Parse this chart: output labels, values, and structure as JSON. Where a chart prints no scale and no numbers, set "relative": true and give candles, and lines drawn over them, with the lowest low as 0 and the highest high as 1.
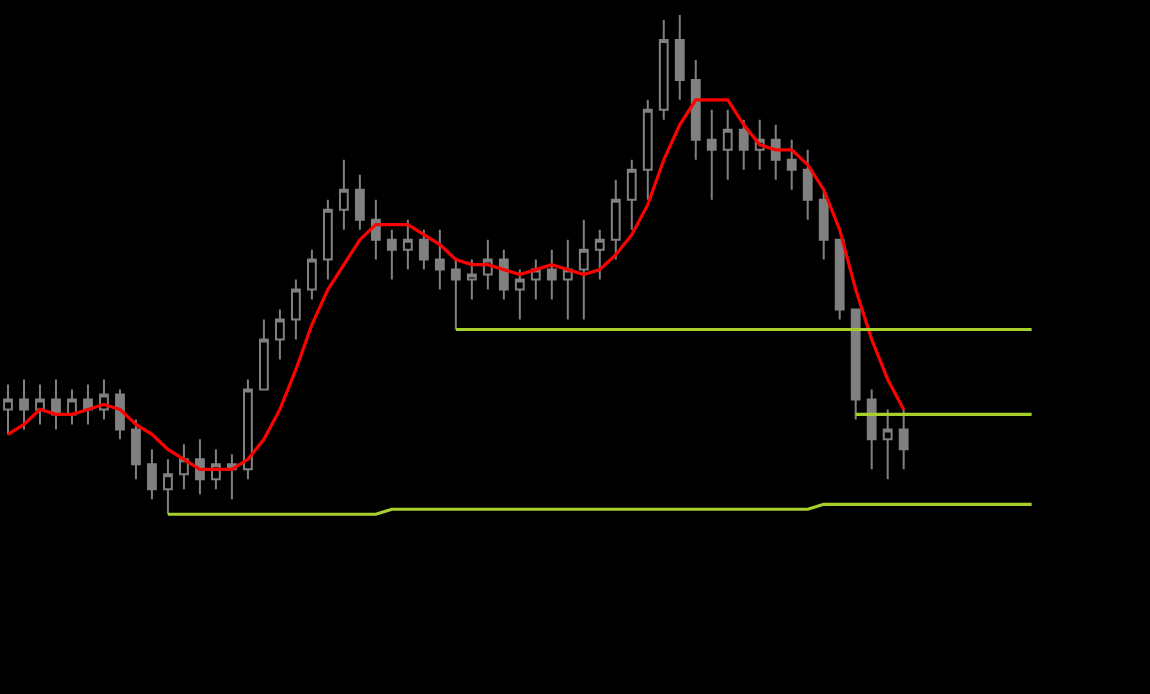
{
  "chart_data": {
    "type": "candlestick",
    "relative": true,
    "grid": false,
    "color": "#808080",
    "categories": [
      null,
      null,
      null,
      null,
      null,
      null,
      null,
      null,
      null,
      null,
      null,
      null,
      null,
      null,
      null,
      null,
      null,
      null,
      null,
      null,
      null,
      null,
      null,
      null,
      null,
      null,
      null,
      null,
      null,
      null,
      null,
      null,
      null,
      null,
      null,
      null,
      null,
      null,
      null,
      null,
      null,
      null,
      null,
      null,
      null,
      null,
      null,
      null,
      null,
      null,
      null,
      null,
      null,
      null,
      null,
      null,
      null,
      null,
      null,
      null,
      null,
      null,
      null,
      null,
      null
    ],
    "ohlc": [
      [
        0.21,
        0.26,
        0.16,
        0.23
      ],
      [
        0.23,
        0.27,
        0.17,
        0.21
      ],
      [
        0.21,
        0.26,
        0.18,
        0.23
      ],
      [
        0.23,
        0.27,
        0.17,
        0.2
      ],
      [
        0.2,
        0.25,
        0.18,
        0.23
      ],
      [
        0.23,
        0.26,
        0.18,
        0.21
      ],
      [
        0.21,
        0.27,
        0.19,
        0.24
      ],
      [
        0.24,
        0.25,
        0.15,
        0.17
      ],
      [
        0.17,
        0.19,
        0.07,
        0.1
      ],
      [
        0.1,
        0.13,
        0.03,
        0.05
      ],
      [
        0.05,
        0.11,
        0.0,
        0.08
      ],
      [
        0.08,
        0.14,
        0.05,
        0.11
      ],
      [
        0.11,
        0.15,
        0.04,
        0.07
      ],
      [
        0.07,
        0.13,
        0.05,
        0.1
      ],
      [
        0.1,
        0.12,
        0.03,
        0.09
      ],
      [
        0.09,
        0.27,
        0.07,
        0.25
      ],
      [
        0.25,
        0.39,
        0.25,
        0.35
      ],
      [
        0.35,
        0.41,
        0.31,
        0.39
      ],
      [
        0.39,
        0.47,
        0.35,
        0.45
      ],
      [
        0.45,
        0.53,
        0.43,
        0.51
      ],
      [
        0.51,
        0.63,
        0.47,
        0.61
      ],
      [
        0.61,
        0.71,
        0.57,
        0.65
      ],
      [
        0.65,
        0.68,
        0.57,
        0.59
      ],
      [
        0.59,
        0.63,
        0.51,
        0.55
      ],
      [
        0.55,
        0.57,
        0.47,
        0.53
      ],
      [
        0.53,
        0.59,
        0.49,
        0.55
      ],
      [
        0.55,
        0.57,
        0.49,
        0.51
      ],
      [
        0.51,
        0.57,
        0.45,
        0.49
      ],
      [
        0.49,
        0.51,
        0.37,
        0.47
      ],
      [
        0.47,
        0.51,
        0.43,
        0.48
      ],
      [
        0.48,
        0.55,
        0.45,
        0.51
      ],
      [
        0.51,
        0.53,
        0.43,
        0.45
      ],
      [
        0.45,
        0.49,
        0.39,
        0.47
      ],
      [
        0.47,
        0.51,
        0.43,
        0.49
      ],
      [
        0.49,
        0.53,
        0.43,
        0.47
      ],
      [
        0.47,
        0.55,
        0.39,
        0.49
      ],
      [
        0.49,
        0.59,
        0.39,
        0.53
      ],
      [
        0.53,
        0.57,
        0.47,
        0.55
      ],
      [
        0.55,
        0.67,
        0.51,
        0.63
      ],
      [
        0.63,
        0.71,
        0.57,
        0.69
      ],
      [
        0.69,
        0.83,
        0.63,
        0.81
      ],
      [
        0.81,
        0.99,
        0.79,
        0.95
      ],
      [
        0.95,
        1.0,
        0.83,
        0.87
      ],
      [
        0.87,
        0.91,
        0.71,
        0.75
      ],
      [
        0.75,
        0.81,
        0.63,
        0.73
      ],
      [
        0.73,
        0.81,
        0.67,
        0.77
      ],
      [
        0.77,
        0.79,
        0.69,
        0.73
      ],
      [
        0.73,
        0.79,
        0.69,
        0.75
      ],
      [
        0.75,
        0.78,
        0.67,
        0.71
      ],
      [
        0.71,
        0.75,
        0.65,
        0.69
      ],
      [
        0.69,
        0.73,
        0.59,
        0.63
      ],
      [
        0.63,
        0.65,
        0.51,
        0.55
      ],
      [
        0.55,
        0.55,
        0.39,
        0.41
      ],
      [
        0.41,
        0.41,
        0.19,
        0.23
      ],
      [
        0.23,
        0.25,
        0.09,
        0.15
      ],
      [
        0.15,
        0.21,
        0.07,
        0.17
      ],
      [
        0.17,
        0.21,
        0.09,
        0.13
      ],
      null,
      null,
      null,
      null,
      null,
      null,
      null,
      null
    ],
    "series": [
      {
        "type": "line",
        "color": "#ff0000",
        "values": [
          0.16,
          0.18,
          0.21,
          0.2,
          0.2,
          0.21,
          0.22,
          0.21,
          0.18,
          0.16,
          0.13,
          0.11,
          0.09,
          0.09,
          0.09,
          0.11,
          0.15,
          0.21,
          0.29,
          0.38,
          0.45,
          0.5,
          0.55,
          0.58,
          0.58,
          0.58,
          0.56,
          0.54,
          0.51,
          0.5,
          0.5,
          0.49,
          0.48,
          0.49,
          0.5,
          0.49,
          0.48,
          0.49,
          0.52,
          0.56,
          0.62,
          0.71,
          0.78,
          0.83,
          0.83,
          0.83,
          0.78,
          0.74,
          0.73,
          0.73,
          0.7,
          0.65,
          0.57,
          0.45,
          0.35,
          0.27,
          0.21,
          null,
          null,
          null,
          null,
          null,
          null,
          null,
          null
        ]
      },
      {
        "type": "line",
        "color": "#a8d02c",
        "values": [
          null,
          null,
          null,
          null,
          null,
          null,
          null,
          null,
          null,
          null,
          0.0,
          0.0,
          0.0,
          0.0,
          0.0,
          0.0,
          0.0,
          0.0,
          0.0,
          0.0,
          0.0,
          0.0,
          0.0,
          0.0,
          0.01,
          0.01,
          0.01,
          0.01,
          0.01,
          0.01,
          0.01,
          0.01,
          0.01,
          0.01,
          0.01,
          0.01,
          0.01,
          0.01,
          0.01,
          0.01,
          0.01,
          0.01,
          0.01,
          0.01,
          0.01,
          0.01,
          0.01,
          0.01,
          0.01,
          0.01,
          0.01,
          0.02,
          0.02,
          0.02,
          0.02,
          0.02,
          0.02,
          0.02,
          0.02,
          0.02,
          0.02,
          0.02,
          0.02,
          0.02,
          0.02
        ]
      },
      {
        "type": "line",
        "color": "#a8d02c",
        "values": [
          null,
          null,
          null,
          null,
          null,
          null,
          null,
          null,
          null,
          null,
          null,
          null,
          null,
          null,
          null,
          null,
          null,
          null,
          null,
          null,
          null,
          null,
          null,
          null,
          null,
          null,
          null,
          null,
          0.37,
          0.37,
          0.37,
          0.37,
          0.37,
          0.37,
          0.37,
          0.37,
          0.37,
          0.37,
          0.37,
          0.37,
          0.37,
          0.37,
          0.37,
          0.37,
          0.37,
          0.37,
          0.37,
          0.37,
          0.37,
          0.37,
          0.37,
          0.37,
          0.37,
          0.37,
          0.37,
          0.37,
          0.37,
          0.37,
          0.37,
          0.37,
          0.37,
          0.37,
          0.37,
          0.37,
          0.37
        ]
      },
      {
        "type": "line",
        "color": "#a8d02c",
        "values": [
          null,
          null,
          null,
          null,
          null,
          null,
          null,
          null,
          null,
          null,
          null,
          null,
          null,
          null,
          null,
          null,
          null,
          null,
          null,
          null,
          null,
          null,
          null,
          null,
          null,
          null,
          null,
          null,
          null,
          null,
          null,
          null,
          null,
          null,
          null,
          null,
          null,
          null,
          null,
          null,
          null,
          null,
          null,
          null,
          null,
          null,
          null,
          null,
          null,
          null,
          null,
          null,
          null,
          0.2,
          0.2,
          0.2,
          0.2,
          0.2,
          0.2,
          0.2,
          0.2,
          0.2,
          0.2,
          0.2,
          0.2
        ]
      }
    ]
  }
}
